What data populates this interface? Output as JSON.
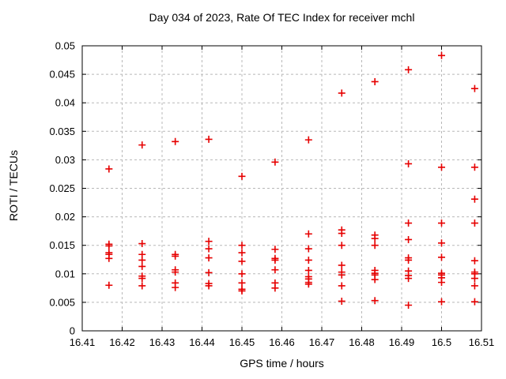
{
  "page": {
    "background": "#ffffff",
    "text_color": "#000000"
  },
  "chart_data": {
    "type": "scatter",
    "title": "Day 034 of 2023, Rate Of TEC Index for receiver mchl",
    "xlabel": "GPS time / hours",
    "ylabel": "ROTI / TECUs",
    "xlim": [
      16.41,
      16.51
    ],
    "ylim": [
      0,
      0.05
    ],
    "xticks": [
      16.41,
      16.42,
      16.43,
      16.44,
      16.45,
      16.46,
      16.47,
      16.48,
      16.49,
      16.5,
      16.51
    ],
    "xtick_labels": [
      "16.41",
      "16.42",
      "16.43",
      "16.44",
      "16.45",
      "16.46",
      "16.47",
      "16.48",
      "16.49",
      "16.5",
      "16.51"
    ],
    "yticks": [
      0,
      0.005,
      0.01,
      0.015,
      0.02,
      0.025,
      0.03,
      0.035,
      0.04,
      0.045,
      0.05
    ],
    "ytick_labels": [
      "0",
      "0.005",
      "0.01",
      "0.015",
      "0.02",
      "0.025",
      "0.03",
      "0.035",
      "0.04",
      "0.045",
      "0.05"
    ],
    "grid": true,
    "grid_color": "#b8b8b8",
    "legend_position": "none",
    "marker": {
      "shape": "plus",
      "color": "#e60000",
      "size": 9
    },
    "series_name": "ROTI",
    "epochs": [
      {
        "x": 16.4167,
        "roti": [
          0.0284,
          0.0152,
          0.0149,
          0.0137,
          0.0134,
          0.0127,
          0.008
        ]
      },
      {
        "x": 16.425,
        "roti": [
          0.0326,
          0.0153,
          0.0134,
          0.0124,
          0.0113,
          0.0096,
          0.0092,
          0.0079
        ]
      },
      {
        "x": 16.4333,
        "roti": [
          0.0332,
          0.0134,
          0.0131,
          0.0107,
          0.0103,
          0.0084,
          0.0076
        ]
      },
      {
        "x": 16.4417,
        "roti": [
          0.0336,
          0.0157,
          0.0144,
          0.0128,
          0.0102,
          0.0083,
          0.0079
        ]
      },
      {
        "x": 16.45,
        "roti": [
          0.0271,
          0.015,
          0.0137,
          0.0122,
          0.01,
          0.0084,
          0.0073,
          0.007
        ]
      },
      {
        "x": 16.4583,
        "roti": [
          0.0296,
          0.0143,
          0.0127,
          0.0124,
          0.0107,
          0.0084,
          0.0075
        ]
      },
      {
        "x": 16.4667,
        "roti": [
          0.0335,
          0.017,
          0.0144,
          0.0124,
          0.0106,
          0.0095,
          0.0091,
          0.0085,
          0.0082
        ]
      },
      {
        "x": 16.475,
        "roti": [
          0.0417,
          0.0177,
          0.0171,
          0.015,
          0.0115,
          0.0103,
          0.0098,
          0.0079,
          0.0052
        ]
      },
      {
        "x": 16.4833,
        "roti": [
          0.0437,
          0.0168,
          0.0162,
          0.015,
          0.0106,
          0.0101,
          0.0098,
          0.009,
          0.0053
        ]
      },
      {
        "x": 16.4917,
        "roti": [
          0.0458,
          0.0293,
          0.0189,
          0.016,
          0.0128,
          0.0124,
          0.0105,
          0.0097,
          0.0092,
          0.0045
        ]
      },
      {
        "x": 16.5,
        "roti": [
          0.0483,
          0.0287,
          0.0189,
          0.0154,
          0.0129,
          0.0101,
          0.0098,
          0.0093,
          0.0085,
          0.0051
        ]
      },
      {
        "x": 16.5083,
        "roti": [
          0.0425,
          0.0287,
          0.0231,
          0.0189,
          0.0123,
          0.0103,
          0.01,
          0.0092,
          0.0079,
          0.0051
        ]
      }
    ]
  }
}
